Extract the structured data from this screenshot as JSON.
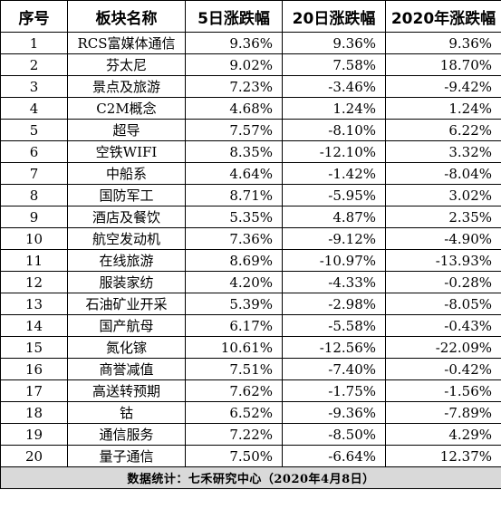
{
  "chart_data": {
    "type": "table",
    "columns": [
      "序号",
      "板块名称",
      "5日涨跌幅",
      "20日涨跌幅",
      "2020年涨跌幅"
    ],
    "rows": [
      [
        "1",
        "RCS富媒体通信",
        "9.36%",
        "9.36%",
        "9.36%"
      ],
      [
        "2",
        "芬太尼",
        "9.02%",
        "7.58%",
        "18.70%"
      ],
      [
        "3",
        "景点及旅游",
        "7.23%",
        "-3.46%",
        "-9.42%"
      ],
      [
        "4",
        "C2M概念",
        "4.68%",
        "1.24%",
        "1.24%"
      ],
      [
        "5",
        "超导",
        "7.57%",
        "-8.10%",
        "6.22%"
      ],
      [
        "6",
        "空铁WIFI",
        "8.35%",
        "-12.10%",
        "3.32%"
      ],
      [
        "7",
        "中船系",
        "4.64%",
        "-1.42%",
        "-8.04%"
      ],
      [
        "8",
        "国防军工",
        "8.71%",
        "-5.95%",
        "3.02%"
      ],
      [
        "9",
        "酒店及餐饮",
        "5.35%",
        "4.87%",
        "2.35%"
      ],
      [
        "10",
        "航空发动机",
        "7.36%",
        "-9.12%",
        "-4.90%"
      ],
      [
        "11",
        "在线旅游",
        "8.69%",
        "-10.97%",
        "-13.93%"
      ],
      [
        "12",
        "服装家纺",
        "4.20%",
        "-4.33%",
        "-0.28%"
      ],
      [
        "13",
        "石油矿业开采",
        "5.39%",
        "-2.98%",
        "-8.05%"
      ],
      [
        "14",
        "国产航母",
        "6.17%",
        "-5.58%",
        "-0.43%"
      ],
      [
        "15",
        "氮化镓",
        "10.61%",
        "-12.56%",
        "-22.09%"
      ],
      [
        "16",
        "商誉减值",
        "7.51%",
        "-7.40%",
        "-0.42%"
      ],
      [
        "17",
        "高送转预期",
        "7.62%",
        "-1.75%",
        "-1.56%"
      ],
      [
        "18",
        "钴",
        "6.52%",
        "-9.36%",
        "-7.89%"
      ],
      [
        "19",
        "通信服务",
        "7.22%",
        "-8.50%",
        "4.29%"
      ],
      [
        "20",
        "量子通信",
        "7.50%",
        "-6.64%",
        "12.37%"
      ]
    ],
    "footer": "数据统计：七禾研究中心（2020年4月8日）"
  },
  "colors": {
    "border": "#000000",
    "footer_background": "#d9d9d9"
  }
}
